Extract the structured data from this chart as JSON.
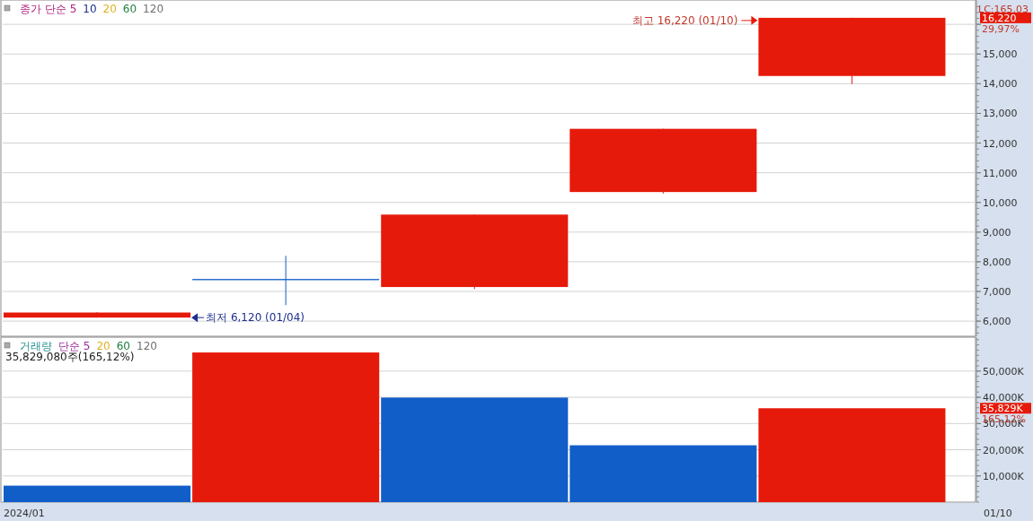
{
  "chart_data": [
    {
      "type": "candlestick",
      "categories": [
        null,
        null,
        null,
        null,
        null
      ],
      "ohlc": [
        [
          6120,
          6300,
          6120,
          6290
        ],
        [
          7420,
          8200,
          6540,
          7380
        ],
        [
          7150,
          9590,
          7080,
          9590
        ],
        [
          10350,
          12480,
          10300,
          12480
        ],
        [
          14260,
          16220,
          13990,
          16220
        ]
      ],
      "colors": [
        "#e61a0a",
        "#125ec8",
        "#e61a0a",
        "#e61a0a",
        "#e61a0a"
      ],
      "ylim": [
        5490,
        16790
      ],
      "yticks": [
        {
          "value": 6000,
          "label": "6,000"
        },
        {
          "value": 7000,
          "label": "7,000"
        },
        {
          "value": 8000,
          "label": "8,000"
        },
        {
          "value": 9000,
          "label": "9,000"
        },
        {
          "value": 10000,
          "label": "10,000"
        },
        {
          "value": 11000,
          "label": "11,000"
        },
        {
          "value": 12000,
          "label": "12,000"
        },
        {
          "value": 13000,
          "label": "13,000"
        },
        {
          "value": 14000,
          "label": "14,000"
        },
        {
          "value": 15000,
          "label": "15,000"
        },
        {
          "value": 16000,
          "label": null
        }
      ],
      "grid": "y",
      "tick_labels": "y",
      "annotations": [
        "종가 단순 5",
        "10",
        "20",
        "60",
        "120",
        "LC:165,03",
        "16,220",
        "29,97%",
        "최저 6,120 (01/04)",
        "최고 16,220 (01/10)"
      ]
    },
    {
      "type": "bar",
      "categories": [
        "2024/01",
        null,
        null,
        null,
        null
      ],
      "values": [
        6300,
        57100,
        39900,
        21700,
        35829.08
      ],
      "colors": [
        "#125ec8",
        "#e61a0a",
        "#125ec8",
        "#125ec8",
        "#e61a0a"
      ],
      "ylim": [
        0,
        62600
      ],
      "yticks": [
        {
          "value": 10000,
          "label": "10,000K"
        },
        {
          "value": 20000,
          "label": "20,000K"
        },
        {
          "value": 30000,
          "label": "30,000K"
        },
        {
          "value": 40000,
          "label": "40,000K"
        },
        {
          "value": 50000,
          "label": "50,000K"
        }
      ],
      "grid": "y",
      "annotations": [
        "거래량",
        "단순 5",
        "20",
        "60",
        "120",
        "35,829,080주(165,12%)",
        "35,829K",
        "165,12%",
        "01/10"
      ]
    }
  ]
}
